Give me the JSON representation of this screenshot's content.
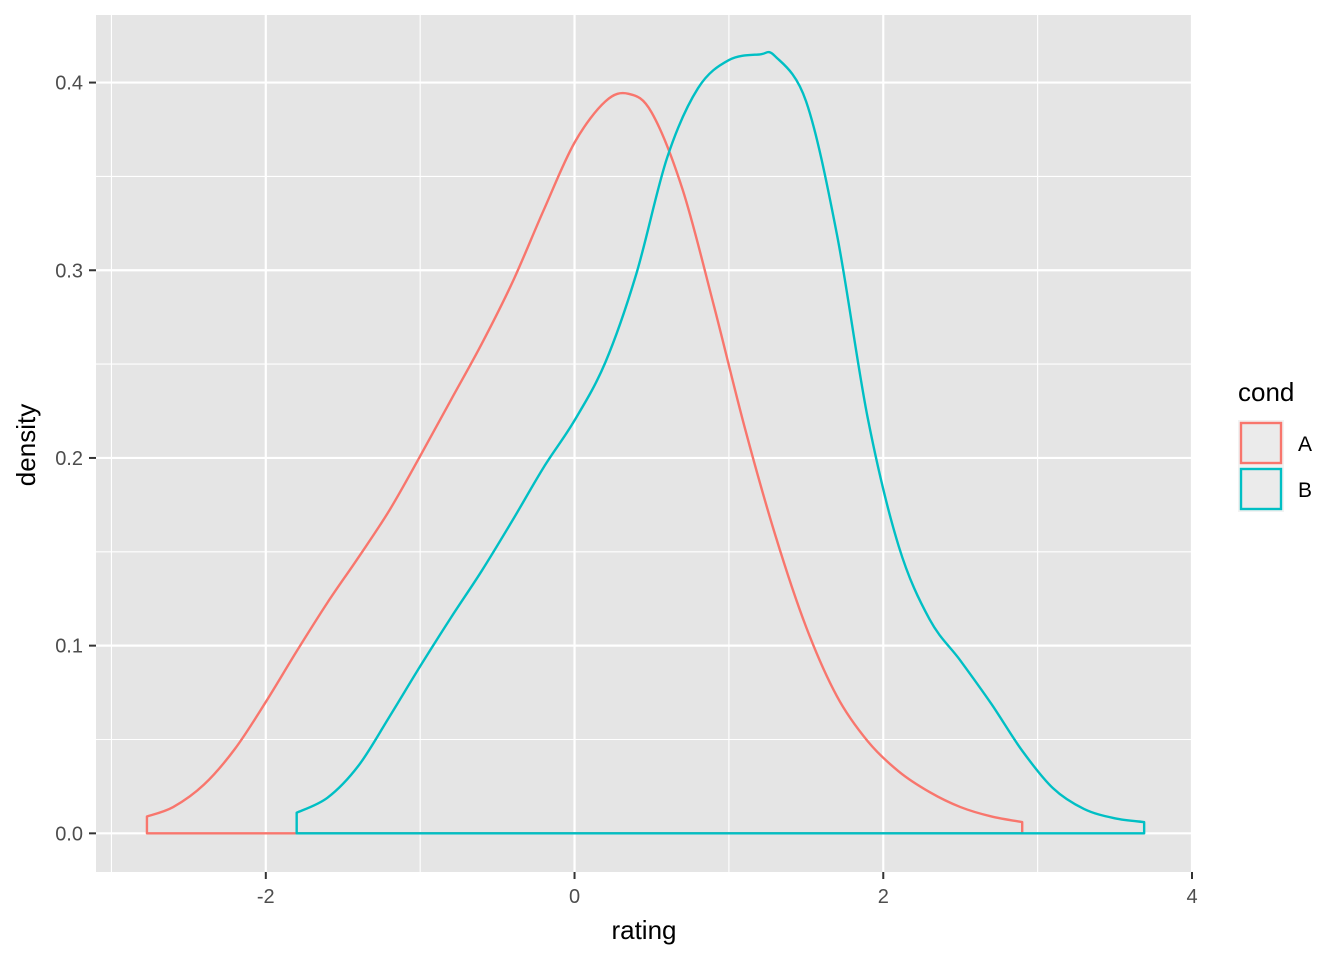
{
  "chart_data": {
    "type": "area",
    "geom": "density",
    "title": "",
    "xlabel": "rating",
    "ylabel": "density",
    "xlim": [
      -3.1,
      4.0
    ],
    "ylim": [
      -0.0206,
      0.436
    ],
    "x_ticks": [
      -2,
      0,
      2,
      4
    ],
    "x_tick_labels": [
      "-2",
      "0",
      "2",
      "4"
    ],
    "y_ticks": [
      0.0,
      0.1,
      0.2,
      0.3,
      0.4
    ],
    "y_tick_labels": [
      "0.0",
      "0.1",
      "0.2",
      "0.3",
      "0.4"
    ],
    "grid": true,
    "panel_background": "#e5e5e5",
    "legend": {
      "title": "cond",
      "position": "right"
    },
    "series": [
      {
        "name": "A",
        "color": "#f8766d",
        "x": [
          -2.77,
          -2.6,
          -2.4,
          -2.2,
          -2.0,
          -1.8,
          -1.6,
          -1.4,
          -1.2,
          -1.0,
          -0.8,
          -0.6,
          -0.4,
          -0.2,
          0.0,
          0.2,
          0.35,
          0.5,
          0.7,
          0.9,
          1.1,
          1.3,
          1.5,
          1.7,
          1.9,
          2.1,
          2.3,
          2.5,
          2.7,
          2.9
        ],
        "y": [
          0.009,
          0.014,
          0.026,
          0.045,
          0.07,
          0.097,
          0.123,
          0.147,
          0.172,
          0.201,
          0.231,
          0.261,
          0.294,
          0.332,
          0.368,
          0.39,
          0.394,
          0.384,
          0.343,
          0.282,
          0.217,
          0.159,
          0.11,
          0.073,
          0.049,
          0.033,
          0.022,
          0.014,
          0.009,
          0.006
        ]
      },
      {
        "name": "B",
        "color": "#00bfc4",
        "x": [
          -1.8,
          -1.6,
          -1.4,
          -1.2,
          -1.0,
          -0.8,
          -0.6,
          -0.4,
          -0.2,
          0.0,
          0.2,
          0.4,
          0.6,
          0.8,
          1.0,
          1.2,
          1.3,
          1.5,
          1.7,
          1.9,
          2.1,
          2.3,
          2.5,
          2.7,
          2.9,
          3.1,
          3.3,
          3.5,
          3.69
        ],
        "y": [
          0.011,
          0.019,
          0.036,
          0.062,
          0.089,
          0.115,
          0.14,
          0.167,
          0.195,
          0.22,
          0.251,
          0.298,
          0.36,
          0.397,
          0.412,
          0.415,
          0.414,
          0.39,
          0.319,
          0.221,
          0.153,
          0.114,
          0.092,
          0.069,
          0.044,
          0.024,
          0.013,
          0.008,
          0.006
        ]
      }
    ]
  }
}
